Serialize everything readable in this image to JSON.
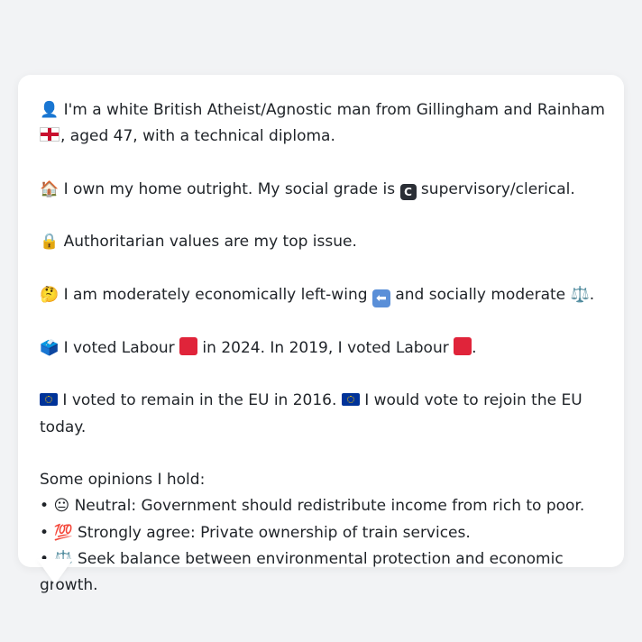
{
  "intro": {
    "icon": "👤",
    "text_a": " I'm a white British Atheist/Agnostic man from Gillingham and Rainham",
    "text_b": ", aged 47, with a technical diploma."
  },
  "home": {
    "icon": "🏠",
    "text_a": " I own my home outright. My social grade is ",
    "badge": "C",
    "text_b": " supervisory/clerical."
  },
  "issue": {
    "icon": "🔒",
    "text": " Authoritarian values are my top issue."
  },
  "ideology": {
    "icon": "🤔",
    "text_a": " I am moderately economically left-wing ",
    "arrow": "⬅",
    "text_b": " and socially moderate ",
    "scale": "⚖️",
    "text_c": "."
  },
  "votes": {
    "icon": "🗳️",
    "text_a": " I voted Labour ",
    "text_b": " in 2024. In 2019, I voted Labour ",
    "text_c": "."
  },
  "eu": {
    "text_a": " I voted to remain in the EU in 2016. ",
    "text_b": " I would vote to rejoin the EU today."
  },
  "opinions": {
    "heading": "Some opinions I hold:",
    "items": [
      {
        "bullet": "•",
        "icon": "😐",
        "text": " Neutral: Government should redistribute income from rich to poor."
      },
      {
        "bullet": "•",
        "icon": "💯",
        "text": " Strongly agree: Private ownership of train services."
      },
      {
        "bullet": "•",
        "icon": "⚖️",
        "text": " Seek balance between environmental protection and economic growth."
      }
    ]
  },
  "colors": {
    "background": "#f2f3f5",
    "bubble": "#ffffff",
    "text": "#1f2328",
    "labour_red": "#e0243a",
    "eu_blue": "#003399"
  }
}
